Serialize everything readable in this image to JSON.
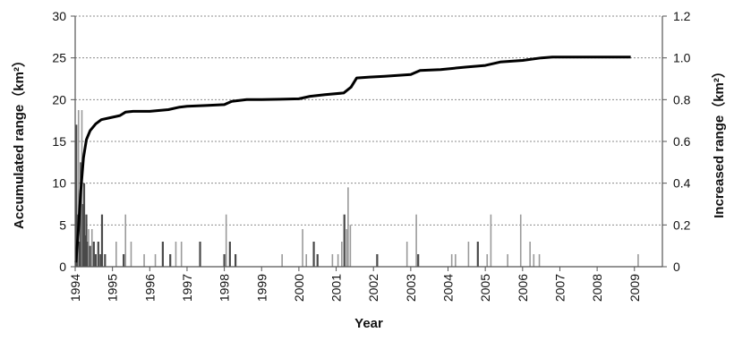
{
  "chart_data": {
    "type": "bar+line",
    "title": "",
    "xlabel": "Year",
    "ylabel_left": "Accumulated range（km²）",
    "ylabel_right": "Increased range（km²）",
    "x_ticks": [
      "1994",
      "1995",
      "1996",
      "1997",
      "1998",
      "1999",
      "2000",
      "2001",
      "2002",
      "2003",
      "2004",
      "2005",
      "2006",
      "2007",
      "2008",
      "2009"
    ],
    "x_range": [
      1994.0,
      2009.75
    ],
    "y_left": {
      "ylim": [
        0,
        30
      ],
      "ticks": [
        "0",
        "5",
        "10",
        "15",
        "20",
        "25",
        "30"
      ]
    },
    "y_right": {
      "ylim": [
        0,
        1.2
      ],
      "ticks": [
        "0",
        "0.2",
        "0.4",
        "0.6",
        "0.8",
        "1.0",
        "1.2"
      ]
    },
    "grid": "horizontal dotted",
    "legend": "none",
    "colors": {
      "line": "#000000",
      "bars": "#4a4a4a",
      "bars_light": "#9a9a9a",
      "grid": "#8c8c8c",
      "axis": "#555555"
    },
    "series": [
      {
        "kind": "line",
        "axis": "left",
        "points": [
          [
            1994.02,
            0.5
          ],
          [
            1994.08,
            4
          ],
          [
            1994.15,
            9
          ],
          [
            1994.22,
            13
          ],
          [
            1994.3,
            15.2
          ],
          [
            1994.4,
            16.3
          ],
          [
            1994.55,
            17.1
          ],
          [
            1994.7,
            17.6
          ],
          [
            1994.9,
            17.8
          ],
          [
            1995.2,
            18.1
          ],
          [
            1995.35,
            18.5
          ],
          [
            1995.55,
            18.6
          ],
          [
            1996.0,
            18.6
          ],
          [
            1996.5,
            18.8
          ],
          [
            1996.8,
            19.1
          ],
          [
            1997.0,
            19.2
          ],
          [
            1997.5,
            19.3
          ],
          [
            1998.0,
            19.4
          ],
          [
            1998.2,
            19.8
          ],
          [
            1998.6,
            20.0
          ],
          [
            1999.0,
            20.0
          ],
          [
            1999.5,
            20.05
          ],
          [
            2000.0,
            20.1
          ],
          [
            2000.3,
            20.4
          ],
          [
            2000.7,
            20.6
          ],
          [
            2001.2,
            20.8
          ],
          [
            2001.4,
            21.5
          ],
          [
            2001.55,
            22.6
          ],
          [
            2001.9,
            22.7
          ],
          [
            2002.3,
            22.8
          ],
          [
            2003.0,
            23.0
          ],
          [
            2003.25,
            23.5
          ],
          [
            2003.8,
            23.6
          ],
          [
            2004.5,
            23.9
          ],
          [
            2005.0,
            24.1
          ],
          [
            2005.4,
            24.5
          ],
          [
            2006.0,
            24.7
          ],
          [
            2006.5,
            25.0
          ],
          [
            2006.8,
            25.1
          ],
          [
            2008.9,
            25.1
          ]
        ]
      },
      {
        "kind": "bar",
        "axis": "right",
        "bars": [
          [
            1994.03,
            0.68,
            "dark"
          ],
          [
            1994.06,
            0.25,
            "dark"
          ],
          [
            1994.09,
            0.75,
            "light"
          ],
          [
            1994.12,
            0.12,
            "dark"
          ],
          [
            1994.15,
            0.5,
            "dark"
          ],
          [
            1994.18,
            0.75,
            "light"
          ],
          [
            1994.21,
            0.3,
            "dark"
          ],
          [
            1994.24,
            0.4,
            "dark"
          ],
          [
            1994.27,
            0.15,
            "dark"
          ],
          [
            1994.3,
            0.25,
            "dark"
          ],
          [
            1994.33,
            0.12,
            "dark"
          ],
          [
            1994.36,
            0.18,
            "light"
          ],
          [
            1994.4,
            0.1,
            "dark"
          ],
          [
            1994.45,
            0.18,
            "light"
          ],
          [
            1994.5,
            0.12,
            "dark"
          ],
          [
            1994.55,
            0.06,
            "dark"
          ],
          [
            1994.62,
            0.12,
            "dark"
          ],
          [
            1994.68,
            0.06,
            "dark"
          ],
          [
            1994.72,
            0.25,
            "dark"
          ],
          [
            1994.8,
            0.06,
            "dark"
          ],
          [
            1995.1,
            0.12,
            "light"
          ],
          [
            1995.3,
            0.06,
            "dark"
          ],
          [
            1995.35,
            0.25,
            "light"
          ],
          [
            1995.5,
            0.12,
            "light"
          ],
          [
            1995.85,
            0.06,
            "light"
          ],
          [
            1996.15,
            0.06,
            "light"
          ],
          [
            1996.35,
            0.12,
            "dark"
          ],
          [
            1996.55,
            0.06,
            "dark"
          ],
          [
            1996.7,
            0.12,
            "light"
          ],
          [
            1996.85,
            0.12,
            "light"
          ],
          [
            1997.35,
            0.12,
            "dark"
          ],
          [
            1998.0,
            0.06,
            "dark"
          ],
          [
            1998.05,
            0.25,
            "light"
          ],
          [
            1998.15,
            0.12,
            "dark"
          ],
          [
            1998.3,
            0.06,
            "dark"
          ],
          [
            1999.55,
            0.06,
            "light"
          ],
          [
            2000.1,
            0.18,
            "light"
          ],
          [
            2000.2,
            0.06,
            "light"
          ],
          [
            2000.4,
            0.12,
            "dark"
          ],
          [
            2000.5,
            0.06,
            "dark"
          ],
          [
            2000.9,
            0.06,
            "light"
          ],
          [
            2001.05,
            0.06,
            "light"
          ],
          [
            2001.15,
            0.12,
            "light"
          ],
          [
            2001.22,
            0.25,
            "dark"
          ],
          [
            2001.28,
            0.18,
            "light"
          ],
          [
            2001.32,
            0.38,
            "light"
          ],
          [
            2001.38,
            0.2,
            "light"
          ],
          [
            2002.1,
            0.06,
            "dark"
          ],
          [
            2002.9,
            0.12,
            "light"
          ],
          [
            2003.15,
            0.25,
            "light"
          ],
          [
            2003.2,
            0.06,
            "dark"
          ],
          [
            2004.1,
            0.06,
            "light"
          ],
          [
            2004.2,
            0.06,
            "light"
          ],
          [
            2004.55,
            0.12,
            "light"
          ],
          [
            2004.8,
            0.12,
            "dark"
          ],
          [
            2005.05,
            0.06,
            "light"
          ],
          [
            2005.15,
            0.25,
            "light"
          ],
          [
            2005.6,
            0.06,
            "light"
          ],
          [
            2005.95,
            0.25,
            "light"
          ],
          [
            2006.2,
            0.12,
            "light"
          ],
          [
            2006.3,
            0.06,
            "light"
          ],
          [
            2006.45,
            0.06,
            "light"
          ],
          [
            2009.1,
            0.06,
            "light"
          ]
        ]
      }
    ]
  }
}
